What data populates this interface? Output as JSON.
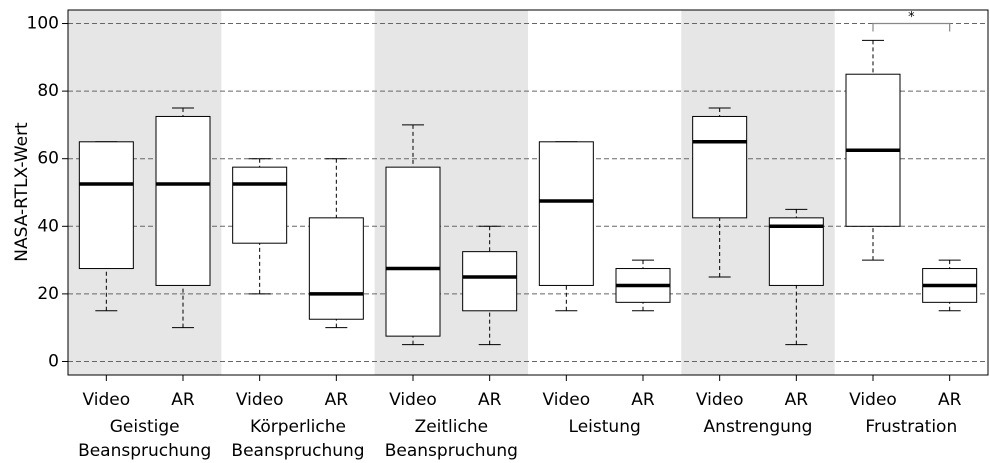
{
  "chart_data": {
    "type": "box",
    "y_label": "NASA-RTLX-Wert",
    "categories": [
      "Video",
      "AR",
      "Video",
      "AR",
      "Video",
      "AR",
      "Video",
      "AR",
      "Video",
      "AR",
      "Video",
      "AR"
    ],
    "groups": [
      {
        "lines": [
          "Geistige",
          "Beanspruchung"
        ]
      },
      {
        "lines": [
          "Körperliche",
          "Beanspruchung"
        ]
      },
      {
        "lines": [
          "Zeitliche",
          "Beanspruchung"
        ]
      },
      {
        "lines": [
          "Leistung"
        ]
      },
      {
        "lines": [
          "Anstrengung"
        ]
      },
      {
        "lines": [
          "Frustration"
        ]
      }
    ],
    "boxes": [
      {
        "min": 15,
        "q1": 27.5,
        "median": 52.5,
        "q3": 65,
        "max": 65
      },
      {
        "min": 10,
        "q1": 22.5,
        "median": 52.5,
        "q3": 72.5,
        "max": 75
      },
      {
        "min": 20,
        "q1": 35,
        "median": 52.5,
        "q3": 57.5,
        "max": 60
      },
      {
        "min": 10,
        "q1": 12.5,
        "median": 20,
        "q3": 42.5,
        "max": 60
      },
      {
        "min": 5,
        "q1": 7.5,
        "median": 27.5,
        "q3": 57.5,
        "max": 70
      },
      {
        "min": 5,
        "q1": 15,
        "median": 25,
        "q3": 32.5,
        "max": 40
      },
      {
        "min": 15,
        "q1": 22.5,
        "median": 47.5,
        "q3": 65,
        "max": 65
      },
      {
        "min": 15,
        "q1": 17.5,
        "median": 22.5,
        "q3": 27.5,
        "max": 30
      },
      {
        "min": 25,
        "q1": 42.5,
        "median": 65,
        "q3": 72.5,
        "max": 75
      },
      {
        "min": 5,
        "q1": 22.5,
        "median": 40,
        "q3": 42.5,
        "max": 45
      },
      {
        "min": 30,
        "q1": 40,
        "median": 62.5,
        "q3": 85,
        "max": 95
      },
      {
        "min": 15,
        "q1": 17.5,
        "median": 22.5,
        "q3": 27.5,
        "max": 30
      }
    ],
    "annotations": [
      {
        "text": "*",
        "y": 100
      }
    ],
    "ylim": [
      -4,
      104
    ],
    "yticks": [
      0,
      20,
      40,
      60,
      80,
      100
    ],
    "grid": true,
    "shade_color": "#e6e6e6"
  }
}
